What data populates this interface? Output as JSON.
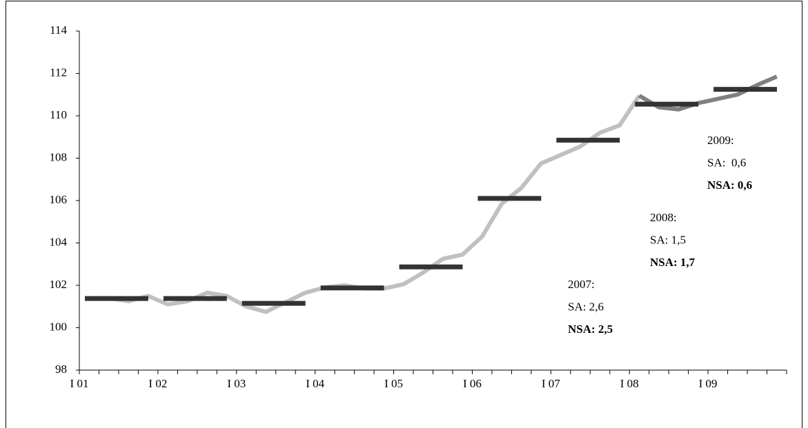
{
  "chart_data": {
    "type": "line",
    "categories": [
      "I 01",
      null,
      null,
      null,
      "I 02",
      null,
      null,
      null,
      "I 03",
      null,
      null,
      null,
      "I 04",
      null,
      null,
      null,
      "I 05",
      null,
      null,
      null,
      "I 06",
      null,
      null,
      null,
      "I 07",
      null,
      null,
      null,
      "I 08",
      null,
      null,
      null,
      "I 09",
      null,
      null,
      null
    ],
    "series": [
      {
        "color": "#c0c0c0",
        "values": [
          101.38,
          101.4,
          101.25,
          101.5,
          101.1,
          101.25,
          101.65,
          101.5,
          101.0,
          100.75,
          101.2,
          101.65,
          101.9,
          102.0,
          101.85,
          101.85,
          102.05,
          102.6,
          103.25,
          103.45,
          104.3,
          105.85,
          106.6,
          107.75,
          108.15,
          108.55,
          109.2,
          109.55,
          110.95,
          null,
          null,
          null,
          null,
          null,
          null,
          null
        ]
      },
      {
        "color": "#808080",
        "values": [
          null,
          null,
          null,
          null,
          null,
          null,
          null,
          null,
          null,
          null,
          null,
          null,
          null,
          null,
          null,
          null,
          null,
          null,
          null,
          null,
          null,
          null,
          null,
          null,
          null,
          null,
          null,
          null,
          110.95,
          110.4,
          110.3,
          110.6,
          110.8,
          111.0,
          111.45,
          111.85
        ]
      }
    ],
    "annual_averages": {
      "color": "#333333",
      "values": [
        101.38,
        101.38,
        101.15,
        101.88,
        102.87,
        106.1,
        108.85,
        110.55,
        111.25
      ]
    },
    "ylim": [
      98,
      114
    ],
    "yticks": [
      98,
      100,
      102,
      104,
      106,
      108,
      110,
      112,
      114
    ],
    "annotations": [
      {
        "lines": [
          "2007:",
          "SA: 2,6",
          "NSA: 2,5"
        ]
      },
      {
        "lines": [
          "2008:",
          "SA: 1,5",
          "NSA: 1,7"
        ]
      },
      {
        "lines": [
          "2009:",
          "SA:  0,6",
          "NSA: 0,6"
        ]
      }
    ]
  }
}
